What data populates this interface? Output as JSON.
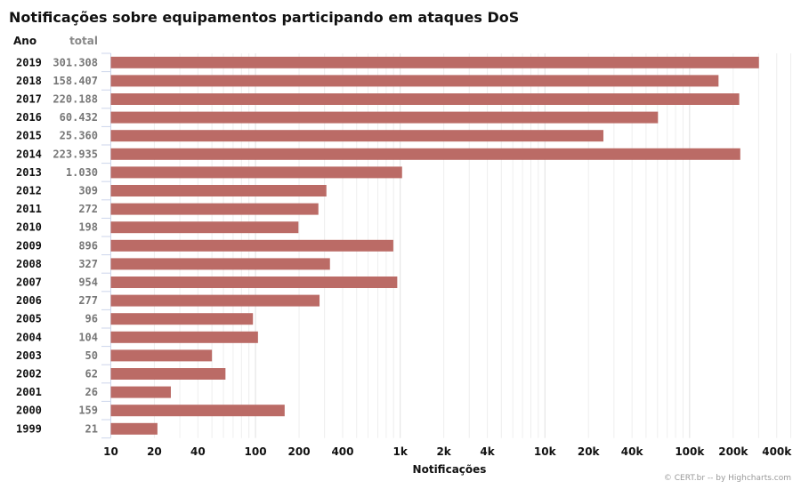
{
  "chart_data": {
    "type": "bar",
    "orientation": "horizontal",
    "title": "Notificações sobre equipamentos participando em ataques DoS",
    "xlabel": "Notificações",
    "ylabel": "",
    "x_scale": "log",
    "xlim": [
      10,
      500000
    ],
    "x_ticks": [
      10,
      20,
      40,
      100,
      200,
      400,
      1000,
      2000,
      4000,
      10000,
      20000,
      40000,
      100000,
      200000,
      400000
    ],
    "x_tick_labels": [
      "10",
      "20",
      "40",
      "100",
      "200",
      "400",
      "1k",
      "2k",
      "4k",
      "10k",
      "20k",
      "40k",
      "100k",
      "200k",
      "400k"
    ],
    "grid": true,
    "legend": "none",
    "bar_color": "#bb6b66",
    "column_headers": {
      "year": "Ano",
      "total": "total"
    },
    "categories": [
      "2019",
      "2018",
      "2017",
      "2016",
      "2015",
      "2014",
      "2013",
      "2012",
      "2011",
      "2010",
      "2009",
      "2008",
      "2007",
      "2006",
      "2005",
      "2004",
      "2003",
      "2002",
      "2001",
      "2000",
      "1999"
    ],
    "values": [
      301308,
      158407,
      220188,
      60432,
      25360,
      223935,
      1030,
      309,
      272,
      198,
      896,
      327,
      954,
      277,
      96,
      104,
      50,
      62,
      26,
      159,
      21
    ],
    "value_labels": [
      "301.308",
      "158.407",
      "220.188",
      "60.432",
      "25.360",
      "223.935",
      "1.030",
      "309",
      "272",
      "198",
      "896",
      "327",
      "954",
      "277",
      "96",
      "104",
      "50",
      "62",
      "26",
      "159",
      "21"
    ],
    "credits": "© CERT.br -- by Highcharts.com"
  }
}
